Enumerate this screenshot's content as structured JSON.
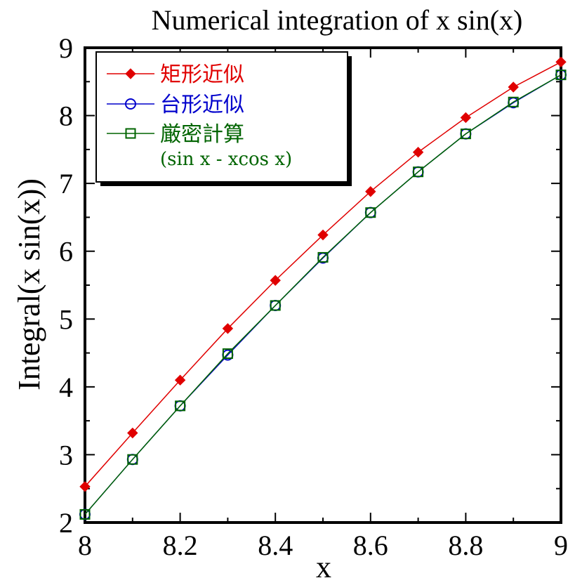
{
  "chart_data": {
    "type": "line",
    "title": "Numerical integration of x sin(x)",
    "xlabel": "x",
    "ylabel": "Integral(x sin(x))",
    "xlim": [
      8,
      9
    ],
    "ylim": [
      2,
      9
    ],
    "x_ticks": [
      "8",
      "8.2",
      "8.4",
      "8.6",
      "8.8",
      "9"
    ],
    "x_tick_values": [
      8,
      8.2,
      8.4,
      8.6,
      8.8,
      9
    ],
    "y_ticks": [
      "2",
      "3",
      "4",
      "5",
      "6",
      "7",
      "8",
      "9"
    ],
    "y_tick_values": [
      2,
      3,
      4,
      5,
      6,
      7,
      8,
      9
    ],
    "grid": false,
    "legend_position": "top-left",
    "x": [
      8.0,
      8.1,
      8.2,
      8.3,
      8.4,
      8.5,
      8.6,
      8.7,
      8.8,
      8.9,
      9.0
    ],
    "series": [
      {
        "name": "矩形近似",
        "marker": "diamond",
        "color": "#e00000",
        "values": [
          2.53,
          3.32,
          4.1,
          4.86,
          5.57,
          6.24,
          6.88,
          7.46,
          7.97,
          8.42,
          8.79
        ]
      },
      {
        "name": "台形近似",
        "marker": "circle",
        "color": "#0000cc",
        "values": [
          2.12,
          2.93,
          3.72,
          4.47,
          5.2,
          5.9,
          6.57,
          7.17,
          7.73,
          8.19,
          8.6
        ]
      },
      {
        "name": "厳密計算",
        "name_sub": "(sin x - xcos x)",
        "marker": "square",
        "color": "#006400",
        "values": [
          2.12,
          2.93,
          3.72,
          4.49,
          5.2,
          5.91,
          6.57,
          7.17,
          7.73,
          8.2,
          8.6
        ]
      }
    ]
  }
}
